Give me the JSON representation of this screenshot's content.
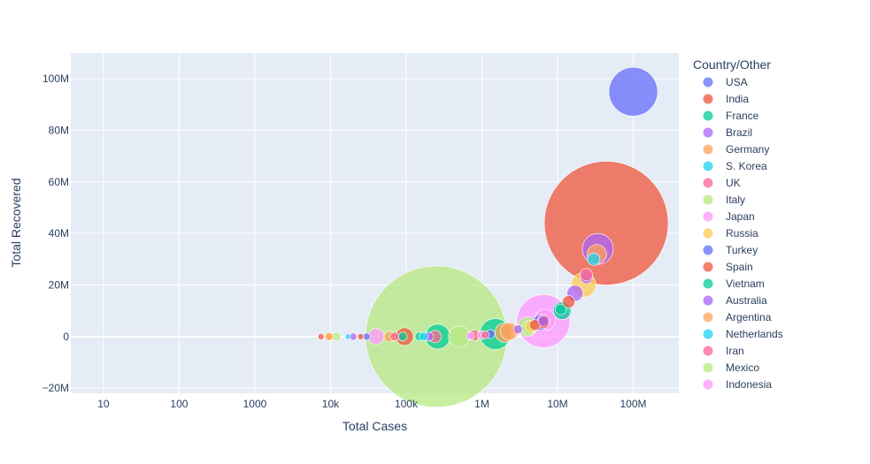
{
  "chart_data": {
    "type": "scatter",
    "subtype": "bubble",
    "title": "",
    "xlabel": "Total Cases",
    "ylabel": "Total Recovered",
    "x_scale": "log",
    "xlim": [
      3.7,
      400000000
    ],
    "ylim": [
      -22000000,
      110000000
    ],
    "x_ticks": [
      10,
      100,
      1000,
      10000,
      100000,
      1000000,
      10000000,
      100000000
    ],
    "x_tick_labels": [
      "10",
      "100",
      "1000",
      "10k",
      "100k",
      "1M",
      "10M",
      "100M"
    ],
    "y_ticks": [
      -20000000,
      0,
      20000000,
      40000000,
      60000000,
      80000000,
      100000000
    ],
    "y_tick_labels": [
      "−20M",
      "0",
      "20M",
      "40M",
      "60M",
      "80M",
      "100M"
    ],
    "grid": true,
    "plot_background": "#e5ecf6",
    "legend": {
      "title": "Country/Other",
      "placement": "right"
    },
    "series": [
      {
        "name": "USA",
        "color": "#636efa",
        "points": [
          {
            "x": 100000000,
            "y": 95000000,
            "size": 55
          }
        ]
      },
      {
        "name": "India",
        "color": "#ef553b",
        "points": [
          {
            "x": 44000000,
            "y": 44000000,
            "size": 140
          },
          {
            "x": 6500000,
            "y": 5500000,
            "size": 14
          },
          {
            "x": 95000,
            "y": 0,
            "size": 20
          },
          {
            "x": 7500,
            "y": 0,
            "size": 7
          }
        ]
      },
      {
        "name": "France",
        "color": "#00cc96",
        "points": [
          {
            "x": 11500000,
            "y": 10000000,
            "size": 20
          },
          {
            "x": 1500000,
            "y": 1000000,
            "size": 35
          },
          {
            "x": 260000,
            "y": 0,
            "size": 28
          },
          {
            "x": 150000,
            "y": 0,
            "size": 10
          }
        ]
      },
      {
        "name": "Brazil",
        "color": "#ab63fa",
        "points": [
          {
            "x": 34000000,
            "y": 34000000,
            "size": 35
          },
          {
            "x": 17000000,
            "y": 16800000,
            "size": 18
          },
          {
            "x": 24000000,
            "y": 23000000,
            "size": 14
          },
          {
            "x": 3000000,
            "y": 2800000,
            "size": 10
          },
          {
            "x": 20000,
            "y": 0,
            "size": 8
          }
        ]
      },
      {
        "name": "Germany",
        "color": "#ffa15a",
        "points": [
          {
            "x": 33000000,
            "y": 32000000,
            "size": 22
          },
          {
            "x": 2300000,
            "y": 2000000,
            "size": 20
          },
          {
            "x": 60000,
            "y": 0,
            "size": 12
          }
        ]
      },
      {
        "name": "S. Korea",
        "color": "#19d3f3",
        "points": [
          {
            "x": 30000000,
            "y": 30000000,
            "size": 14
          },
          {
            "x": 17000,
            "y": 0,
            "size": 6
          }
        ]
      },
      {
        "name": "UK",
        "color": "#ff6692",
        "points": [
          {
            "x": 24000000,
            "y": 24000000,
            "size": 14
          },
          {
            "x": 6600000,
            "y": 6000000,
            "size": 15
          },
          {
            "x": 240000,
            "y": 0,
            "size": 14
          },
          {
            "x": 800000,
            "y": 500000,
            "size": 12
          }
        ]
      },
      {
        "name": "Italy",
        "color": "#b6e880",
        "points": [
          {
            "x": 250000,
            "y": 0,
            "size": 160
          },
          {
            "x": 4000000,
            "y": 3800000,
            "size": 22
          },
          {
            "x": 12000,
            "y": 0,
            "size": 10
          }
        ]
      },
      {
        "name": "Japan",
        "color": "#ff97ff",
        "points": [
          {
            "x": 6500000,
            "y": 6000000,
            "size": 60
          },
          {
            "x": 40000,
            "y": 0,
            "size": 18
          },
          {
            "x": 1000000,
            "y": 600000,
            "size": 10
          }
        ]
      },
      {
        "name": "Russia",
        "color": "#fecb52",
        "points": [
          {
            "x": 22000000,
            "y": 20000000,
            "size": 28
          },
          {
            "x": 4500000,
            "y": 4000000,
            "size": 14
          },
          {
            "x": 10000,
            "y": 0,
            "size": 9
          }
        ]
      },
      {
        "name": "Turkey",
        "color": "#636efa",
        "points": [
          {
            "x": 6000000,
            "y": 5500000,
            "size": 18
          },
          {
            "x": 30000,
            "y": 0,
            "size": 8
          },
          {
            "x": 1300000,
            "y": 1000000,
            "size": 10
          }
        ]
      },
      {
        "name": "Spain",
        "color": "#ef553b",
        "points": [
          {
            "x": 14000000,
            "y": 13500000,
            "size": 14
          },
          {
            "x": 5000000,
            "y": 4500000,
            "size": 12
          },
          {
            "x": 25000,
            "y": 0,
            "size": 7
          }
        ]
      },
      {
        "name": "Vietnam",
        "color": "#00cc96",
        "points": [
          {
            "x": 11000000,
            "y": 10500000,
            "size": 12
          },
          {
            "x": 90000,
            "y": 0,
            "size": 10
          }
        ]
      },
      {
        "name": "Australia",
        "color": "#ab63fa",
        "points": [
          {
            "x": 6500000,
            "y": 6000000,
            "size": 12
          },
          {
            "x": 200000,
            "y": 0,
            "size": 10
          }
        ]
      },
      {
        "name": "Argentina",
        "color": "#ffa15a",
        "points": [
          {
            "x": 2000000,
            "y": 1500000,
            "size": 22
          },
          {
            "x": 9500,
            "y": 0,
            "size": 9
          }
        ]
      },
      {
        "name": "Netherlands",
        "color": "#19d3f3",
        "points": [
          {
            "x": 170000,
            "y": 0,
            "size": 10
          }
        ]
      },
      {
        "name": "Iran",
        "color": "#ff6692",
        "points": [
          {
            "x": 70000,
            "y": 0,
            "size": 10
          },
          {
            "x": 1100000,
            "y": 700000,
            "size": 9
          }
        ]
      },
      {
        "name": "Mexico",
        "color": "#b6e880",
        "points": [
          {
            "x": 500000,
            "y": 0,
            "size": 24
          },
          {
            "x": 4200000,
            "y": 3500000,
            "size": 16
          }
        ]
      },
      {
        "name": "Indonesia",
        "color": "#ff97ff",
        "points": [
          {
            "x": 6800000,
            "y": 6500000,
            "size": 24
          },
          {
            "x": 700000,
            "y": 300000,
            "size": 9
          }
        ]
      }
    ]
  }
}
